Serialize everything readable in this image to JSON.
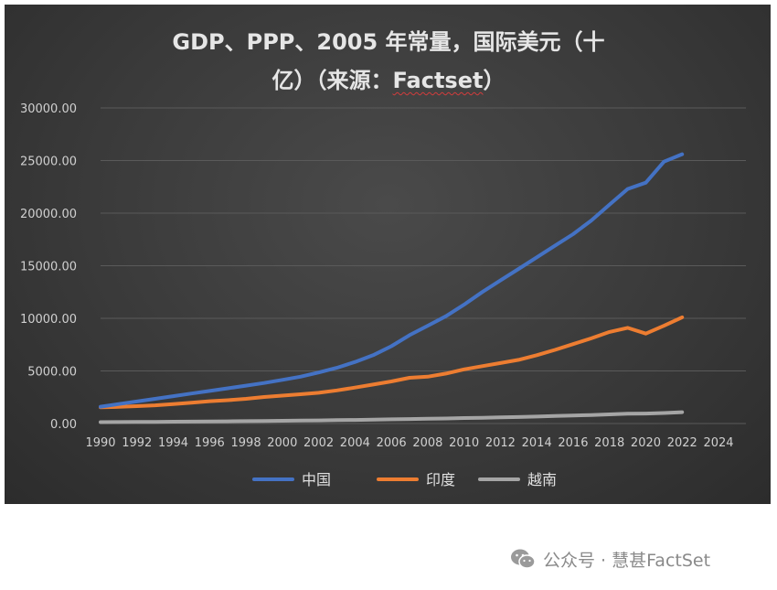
{
  "chart_data": {
    "type": "line",
    "title": "GDP、PPP、2005 年常量，国际美元（十亿）（来源：Factset）",
    "title_lines": [
      "GDP、PPP、2005 年常量，国际美元（十",
      "亿）（来源：",
      "Factset",
      "）"
    ],
    "xlabel": "",
    "ylabel": "",
    "xlim": [
      1990,
      2024
    ],
    "ylim": [
      0,
      30000
    ],
    "x_ticks": [
      "1990",
      "1992",
      "1994",
      "1996",
      "1998",
      "2000",
      "2002",
      "2004",
      "2006",
      "2008",
      "2010",
      "2012",
      "2014",
      "2016",
      "2018",
      "2020",
      "2022",
      "2024"
    ],
    "y_ticks": [
      "0.00",
      "5000.00",
      "10000.00",
      "15000.00",
      "20000.00",
      "25000.00",
      "30000.00"
    ],
    "grid": "horizontal",
    "legend_position": "bottom",
    "x": [
      1990,
      1991,
      1992,
      1993,
      1994,
      1995,
      1996,
      1997,
      1998,
      1999,
      2000,
      2001,
      2002,
      2003,
      2004,
      2005,
      2006,
      2007,
      2008,
      2009,
      2010,
      2011,
      2012,
      2013,
      2014,
      2015,
      2016,
      2017,
      2018,
      2019,
      2020,
      2021,
      2022
    ],
    "series": [
      {
        "name": "中国",
        "color": "#4472c4",
        "values": [
          1600,
          1850,
          2100,
          2350,
          2600,
          2850,
          3100,
          3350,
          3600,
          3850,
          4150,
          4450,
          4850,
          5300,
          5850,
          6500,
          7350,
          8400,
          9300,
          10200,
          11300,
          12500,
          13600,
          14700,
          15800,
          16900,
          18000,
          19300,
          20800,
          22300,
          22900,
          24900,
          25600
        ]
      },
      {
        "name": "印度",
        "color": "#ed7d31",
        "values": [
          1550,
          1580,
          1650,
          1730,
          1850,
          1980,
          2120,
          2220,
          2350,
          2520,
          2650,
          2780,
          2920,
          3150,
          3420,
          3700,
          4000,
          4350,
          4450,
          4750,
          5150,
          5450,
          5750,
          6050,
          6500,
          7000,
          7550,
          8100,
          8700,
          9100,
          8550,
          9300,
          10100
        ]
      },
      {
        "name": "越南",
        "color": "#a5a5a5",
        "values": [
          130,
          140,
          150,
          160,
          170,
          180,
          200,
          210,
          230,
          240,
          260,
          280,
          300,
          320,
          340,
          370,
          400,
          430,
          450,
          480,
          520,
          550,
          590,
          620,
          660,
          710,
          760,
          810,
          870,
          930,
          950,
          1000,
          1080
        ]
      }
    ]
  },
  "watermark": {
    "text": "公众号 · 慧甚FactSet",
    "icon": "wechat-icon"
  }
}
